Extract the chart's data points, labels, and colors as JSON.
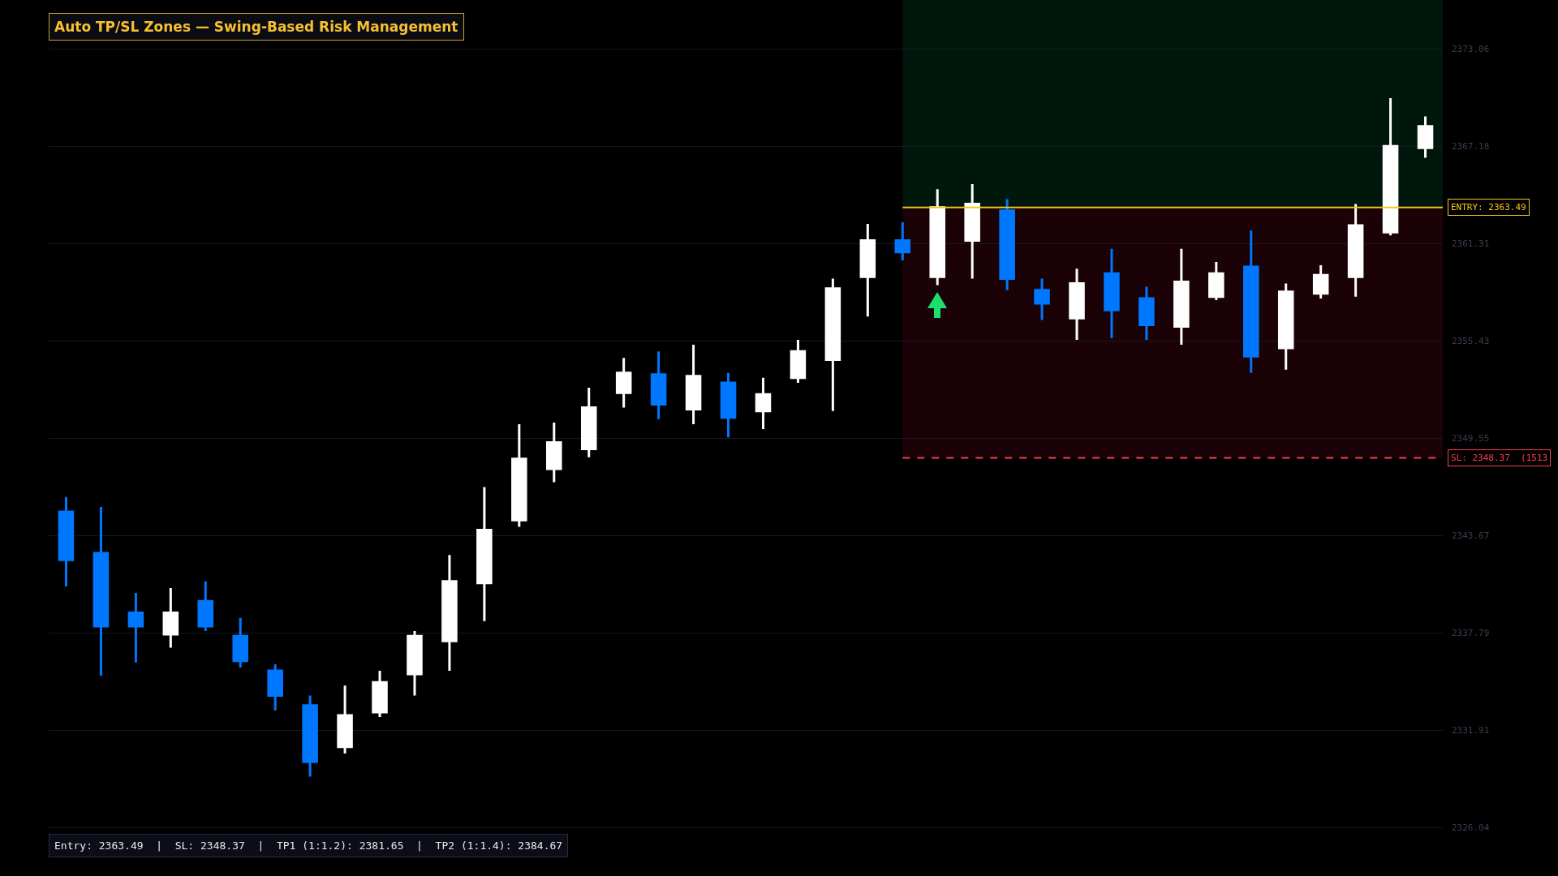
{
  "chart_data": {
    "type": "candlestick",
    "title": "Auto TP/SL Zones — Swing-Based Risk Management",
    "categories": [
      null,
      null,
      null,
      null,
      null,
      null,
      null,
      null,
      null,
      null,
      null,
      null,
      null,
      null,
      null,
      null,
      null,
      null,
      null,
      null,
      null,
      null,
      null,
      null,
      null,
      null,
      null,
      null,
      null,
      null,
      null,
      null,
      null,
      null,
      null,
      null,
      null,
      null,
      null,
      null
    ],
    "ohlc": [
      [
        2345.1,
        2346.0,
        2340.6,
        2342.2
      ],
      [
        2342.6,
        2345.4,
        2335.2,
        2338.2
      ],
      [
        2339.0,
        2340.2,
        2336.0,
        2338.2
      ],
      [
        2337.7,
        2340.5,
        2336.9,
        2339.0
      ],
      [
        2339.7,
        2340.9,
        2337.9,
        2338.2
      ],
      [
        2337.6,
        2338.7,
        2335.7,
        2336.1
      ],
      [
        2335.5,
        2335.9,
        2333.1,
        2334.0
      ],
      [
        2333.4,
        2334.0,
        2329.1,
        2330.0
      ],
      [
        2330.9,
        2334.6,
        2330.5,
        2332.8
      ],
      [
        2333.0,
        2335.5,
        2332.7,
        2334.8
      ],
      [
        2335.3,
        2337.9,
        2334.0,
        2337.6
      ],
      [
        2337.3,
        2342.5,
        2335.5,
        2340.9
      ],
      [
        2340.8,
        2346.6,
        2338.5,
        2344.0
      ],
      [
        2344.6,
        2350.4,
        2344.2,
        2348.3
      ],
      [
        2347.7,
        2350.5,
        2346.9,
        2349.3
      ],
      [
        2348.9,
        2352.6,
        2348.4,
        2351.4
      ],
      [
        2352.3,
        2354.4,
        2351.4,
        2353.5
      ],
      [
        2353.4,
        2354.8,
        2350.7,
        2351.6
      ],
      [
        2351.3,
        2355.2,
        2350.4,
        2353.3
      ],
      [
        2352.9,
        2353.5,
        2349.6,
        2350.8
      ],
      [
        2351.2,
        2353.2,
        2350.1,
        2352.2
      ],
      [
        2353.2,
        2355.5,
        2352.9,
        2354.8
      ],
      [
        2354.3,
        2359.2,
        2351.2,
        2358.6
      ],
      [
        2359.3,
        2362.5,
        2356.9,
        2361.5
      ],
      [
        2361.5,
        2362.6,
        2360.3,
        2360.8
      ],
      [
        2359.3,
        2364.6,
        2358.8,
        2363.5
      ],
      [
        2361.5,
        2364.9,
        2359.2,
        2363.7
      ],
      [
        2363.3,
        2364.0,
        2358.5,
        2359.2
      ],
      [
        2358.5,
        2359.2,
        2356.7,
        2357.7
      ],
      [
        2356.8,
        2359.8,
        2355.5,
        2358.9
      ],
      [
        2359.5,
        2361.0,
        2355.6,
        2357.3
      ],
      [
        2358.0,
        2358.7,
        2355.5,
        2356.4
      ],
      [
        2356.3,
        2361.0,
        2355.2,
        2359.0
      ],
      [
        2358.1,
        2360.2,
        2357.9,
        2359.5
      ],
      [
        2359.9,
        2362.1,
        2353.5,
        2354.5
      ],
      [
        2355.0,
        2358.9,
        2353.7,
        2358.4
      ],
      [
        2358.3,
        2360.0,
        2358.0,
        2359.4
      ],
      [
        2359.3,
        2363.7,
        2358.1,
        2362.4
      ],
      [
        2362.0,
        2370.1,
        2361.8,
        2367.2
      ],
      [
        2367.1,
        2369.0,
        2366.5,
        2368.4
      ]
    ],
    "colors": [
      "#0077ff",
      "#0077ff",
      "#0077ff",
      "#ffffff",
      "#0077ff",
      "#0077ff",
      "#0077ff",
      "#0077ff",
      "#ffffff",
      "#ffffff",
      "#ffffff",
      "#ffffff",
      "#ffffff",
      "#ffffff",
      "#ffffff",
      "#ffffff",
      "#ffffff",
      "#0077ff",
      "#ffffff",
      "#0077ff",
      "#ffffff",
      "#ffffff",
      "#ffffff",
      "#ffffff",
      "#0077ff",
      "#ffffff",
      "#ffffff",
      "#0077ff",
      "#0077ff",
      "#ffffff",
      "#0077ff",
      "#0077ff",
      "#ffffff",
      "#ffffff",
      "#0077ff",
      "#ffffff",
      "#ffffff",
      "#ffffff",
      "#ffffff",
      "#ffffff"
    ],
    "ylim": [
      2323.1,
      2376.03
    ],
    "yticks": [
      2326.04,
      2331.91,
      2337.79,
      2343.67,
      2349.55,
      2355.43,
      2361.31,
      2367.18,
      2373.06
    ],
    "grid": "y",
    "tick_labels": "y",
    "ref_lines": [
      {
        "axis": "y",
        "value": 2363.49,
        "label": "ENTRY: 2363.49",
        "color": "#f5c518",
        "line_style": "solid"
      },
      {
        "axis": "y",
        "value": 2348.37,
        "label": "SL: 2348.37  (1513",
        "color": "#ff3b4e",
        "line_style": "dashed"
      }
    ],
    "bands": [
      {
        "axis": "y",
        "from": 2363.49,
        "to": 2376.03,
        "color": "#00e676"
      },
      {
        "axis": "y",
        "from": 2348.37,
        "to": 2363.49,
        "color": "#ff1744"
      }
    ],
    "annotations": [
      "Entry: 2363.49  |  SL: 2348.37  |  TP1 (1:1.2): 2381.65  |  TP2 (1:1.4): 2384.67"
    ]
  }
}
